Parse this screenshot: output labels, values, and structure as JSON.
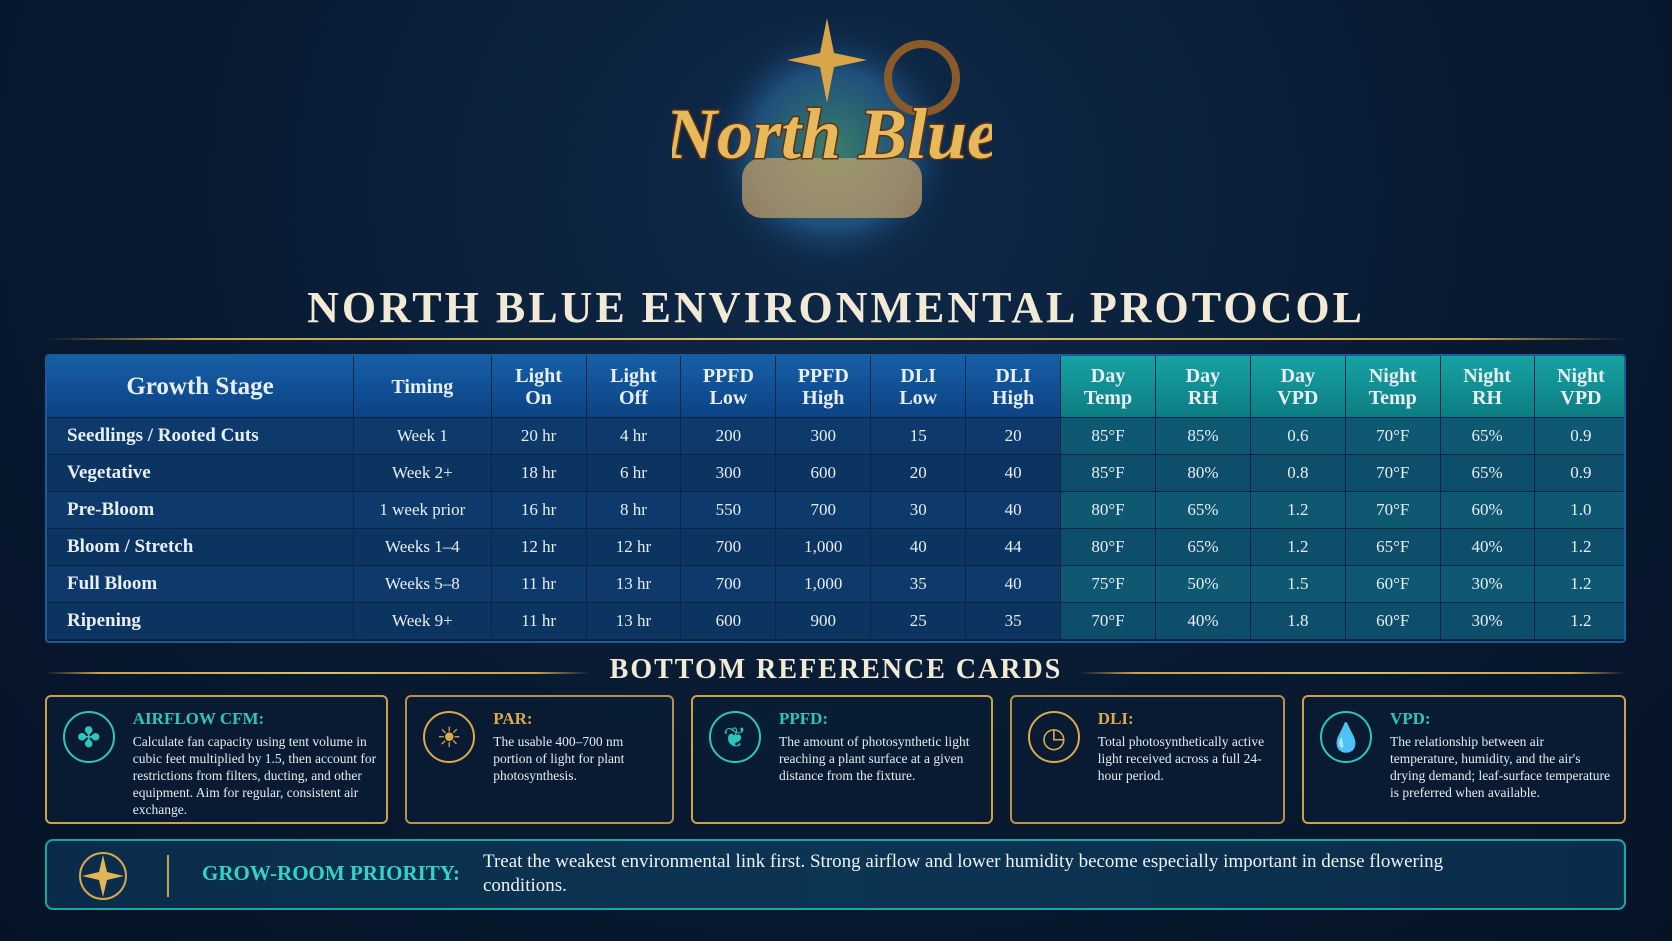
{
  "logo": {
    "text": "North Blue"
  },
  "header": {
    "title": "NORTH BLUE ENVIRONMENTAL PROTOCOL"
  },
  "table": {
    "columns": [
      "Growth Stage",
      "Timing",
      "Light On",
      "Light Off",
      "PPFD Low",
      "PPFD High",
      "DLI Low",
      "DLI High",
      "Day Temp",
      "Day RH",
      "Day VPD",
      "Night Temp",
      "Night RH",
      "Night VPD"
    ],
    "rows": [
      [
        "Seedlings / Rooted Cuts",
        "Week 1",
        "20 hr",
        "4 hr",
        "200",
        "300",
        "15",
        "20",
        "85°F",
        "85%",
        "0.6",
        "70°F",
        "65%",
        "0.9"
      ],
      [
        "Vegetative",
        "Week 2+",
        "18 hr",
        "6 hr",
        "300",
        "600",
        "20",
        "40",
        "85°F",
        "80%",
        "0.8",
        "70°F",
        "65%",
        "0.9"
      ],
      [
        "Pre-Bloom",
        "1 week prior",
        "16 hr",
        "8 hr",
        "550",
        "700",
        "30",
        "40",
        "80°F",
        "65%",
        "1.2",
        "70°F",
        "60%",
        "1.0"
      ],
      [
        "Bloom / Stretch",
        "Weeks 1–4",
        "12 hr",
        "12 hr",
        "700",
        "1,000",
        "40",
        "44",
        "80°F",
        "65%",
        "1.2",
        "65°F",
        "40%",
        "1.2"
      ],
      [
        "Full Bloom",
        "Weeks 5–8",
        "11 hr",
        "13 hr",
        "700",
        "1,000",
        "35",
        "40",
        "75°F",
        "50%",
        "1.5",
        "60°F",
        "30%",
        "1.2"
      ],
      [
        "Ripening",
        "Week 9+",
        "11 hr",
        "13 hr",
        "600",
        "900",
        "25",
        "35",
        "70°F",
        "40%",
        "1.8",
        "60°F",
        "30%",
        "1.2"
      ]
    ]
  },
  "cards": {
    "title": "BOTTOM REFERENCE CARDS",
    "items": [
      {
        "title": "AIRFLOW CFM:",
        "text": "Calculate fan capacity using tent volume in cubic feet multiplied by 1.5, then account for restrictions from filters, ducting, and other equipment. Aim for regular, consistent air exchange."
      },
      {
        "title": "PAR:",
        "text": "The usable 400–700 nm portion of light for plant photosynthesis."
      },
      {
        "title": "PPFD:",
        "text": "The amount of photosynthetic light reaching a plant surface at a given distance from the fixture."
      },
      {
        "title": "DLI:",
        "text": "Total photosynthetically active light received across a full 24-hour period."
      },
      {
        "title": "VPD:",
        "text": "The relationship between air temperature, humidity, and the air's drying demand; leaf-surface temperature is preferred when available."
      }
    ]
  },
  "priority": {
    "label": "GROW-ROOM PRIORITY:",
    "text": "Treat the weakest environmental link first. Strong airflow and lower humidity become especially important in dense flowering conditions."
  }
}
